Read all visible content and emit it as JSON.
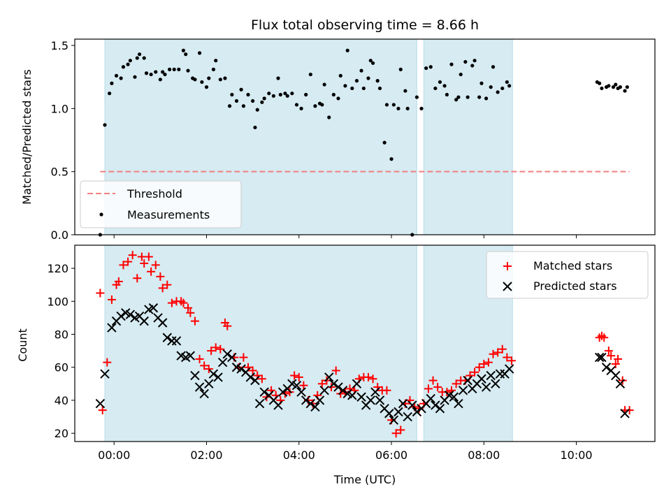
{
  "chart_data": [
    {
      "type": "scatter",
      "panel": "top",
      "title": "Flux total observing time = 8.66 h",
      "ylabel": "Matched/Predicted stars",
      "xlabel": "",
      "ylim": [
        0,
        1.55
      ],
      "xlim_hours": [
        -0.85,
        11.7
      ],
      "yticks": [
        "0.0",
        "0.5",
        "1.0",
        "1.5"
      ],
      "ytick_values": [
        0,
        0.5,
        1.0,
        1.5
      ],
      "shaded_intervals_hours": [
        [
          -0.2,
          6.55
        ],
        [
          6.7,
          8.62
        ]
      ],
      "threshold": {
        "name": "Threshold",
        "value": 0.5,
        "x_from": -0.3,
        "x_to": 11.15,
        "color": "#f08080"
      },
      "legend": {
        "placement": "lower-left",
        "entries": [
          "Threshold",
          "Measurements"
        ]
      },
      "series": [
        {
          "name": "Measurements",
          "color": "#000000",
          "x": [
            -0.3,
            -0.2,
            -0.1,
            -0.05,
            0.05,
            0.15,
            0.2,
            0.3,
            0.35,
            0.45,
            0.5,
            0.55,
            0.65,
            0.7,
            0.8,
            0.9,
            1.0,
            1.05,
            1.1,
            1.2,
            1.3,
            1.4,
            1.5,
            1.55,
            1.6,
            1.7,
            1.75,
            1.85,
            1.9,
            2.0,
            2.05,
            2.15,
            2.2,
            2.3,
            2.4,
            2.5,
            2.55,
            2.65,
            2.75,
            2.8,
            2.9,
            3.0,
            3.05,
            3.1,
            3.2,
            3.25,
            3.35,
            3.45,
            3.55,
            3.6,
            3.7,
            3.75,
            3.85,
            3.95,
            4.05,
            4.15,
            4.25,
            4.35,
            4.45,
            4.5,
            4.55,
            4.65,
            4.75,
            4.85,
            4.9,
            5.0,
            5.05,
            5.15,
            5.25,
            5.35,
            5.4,
            5.5,
            5.55,
            5.6,
            5.7,
            5.75,
            5.85,
            5.9,
            6.0,
            6.05,
            6.15,
            6.2,
            6.3,
            6.35,
            6.45,
            6.55,
            6.65,
            6.75,
            6.85,
            6.95,
            7.05,
            7.15,
            7.2,
            7.3,
            7.4,
            7.45,
            7.5,
            7.6,
            7.65,
            7.75,
            7.8,
            7.9,
            7.95,
            8.05,
            8.15,
            8.2,
            8.3,
            8.4,
            8.5,
            8.55,
            10.45,
            10.5,
            10.55,
            10.65,
            10.7,
            10.8,
            10.85,
            10.9,
            10.95,
            11.05,
            11.1
          ],
          "y": [
            0.0,
            0.87,
            1.12,
            1.2,
            1.26,
            1.24,
            1.33,
            1.35,
            1.38,
            1.25,
            1.4,
            1.43,
            1.4,
            1.28,
            1.27,
            1.29,
            1.23,
            1.29,
            1.27,
            1.31,
            1.31,
            1.31,
            1.46,
            1.43,
            1.3,
            1.24,
            1.23,
            1.44,
            1.21,
            1.17,
            1.24,
            1.31,
            1.38,
            1.23,
            1.24,
            1.02,
            1.11,
            1.06,
            1.15,
            1.02,
            1.11,
            1.06,
            0.85,
            0.99,
            1.05,
            1.08,
            1.12,
            1.1,
            1.24,
            1.11,
            1.12,
            1.1,
            1.12,
            1.03,
            1.0,
            1.11,
            1.27,
            1.02,
            1.04,
            1.03,
            1.19,
            0.93,
            1.11,
            1.08,
            1.26,
            1.18,
            1.46,
            1.16,
            1.22,
            1.3,
            1.16,
            1.24,
            1.38,
            1.36,
            1.22,
            1.16,
            0.73,
            1.03,
            0.6,
            1.03,
            1.0,
            1.31,
            1.14,
            1.0,
            0.0,
            1.09,
            1.0,
            1.32,
            1.33,
            1.16,
            1.21,
            1.18,
            1.11,
            1.35,
            1.07,
            1.09,
            1.27,
            1.37,
            1.09,
            1.34,
            1.38,
            1.09,
            1.2,
            1.08,
            1.17,
            1.33,
            1.13,
            1.16,
            1.21,
            1.18,
            1.21,
            1.2,
            1.16,
            1.17,
            1.18,
            1.17,
            1.19,
            1.16,
            1.17,
            1.14,
            1.17
          ]
        }
      ]
    },
    {
      "type": "scatter",
      "panel": "bottom",
      "xlabel": "Time (UTC)",
      "ylabel": "Count",
      "ylim": [
        15,
        134
      ],
      "xlim_hours": [
        -0.85,
        11.7
      ],
      "xticks": [
        "00:00",
        "02:00",
        "04:00",
        "06:00",
        "08:00",
        "10:00"
      ],
      "xtick_hours": [
        0,
        2,
        4,
        6,
        8,
        10
      ],
      "yticks": [
        "20",
        "40",
        "60",
        "80",
        "100",
        "120"
      ],
      "ytick_values": [
        20,
        40,
        60,
        80,
        100,
        120
      ],
      "shaded_intervals_hours": [
        [
          -0.2,
          6.55
        ],
        [
          6.7,
          8.62
        ]
      ],
      "legend": {
        "placement": "top-right",
        "entries": [
          "Matched stars",
          "Predicted stars"
        ]
      },
      "series": [
        {
          "name": "Matched stars",
          "marker": "plus",
          "color": "#ff0000",
          "x": [
            -0.3,
            -0.25,
            -0.15,
            -0.05,
            0.05,
            0.1,
            0.2,
            0.3,
            0.4,
            0.5,
            0.6,
            0.65,
            0.75,
            0.8,
            0.9,
            1.0,
            1.05,
            1.15,
            1.25,
            1.35,
            1.45,
            1.5,
            1.6,
            1.65,
            1.75,
            1.85,
            1.95,
            2.05,
            2.1,
            2.2,
            2.3,
            2.4,
            2.45,
            2.6,
            2.7,
            2.8,
            2.9,
            3.0,
            3.1,
            3.2,
            3.3,
            3.4,
            3.5,
            3.6,
            3.7,
            3.8,
            3.9,
            4.0,
            4.1,
            4.2,
            4.3,
            4.4,
            4.5,
            4.6,
            4.7,
            4.8,
            4.9,
            5.0,
            5.1,
            5.2,
            5.3,
            5.4,
            5.5,
            5.6,
            5.7,
            5.8,
            5.9,
            6.0,
            6.1,
            6.2,
            6.3,
            6.4,
            6.5,
            6.6,
            6.7,
            6.8,
            6.9,
            7.0,
            7.1,
            7.2,
            7.3,
            7.4,
            7.5,
            7.6,
            7.7,
            7.8,
            7.9,
            8.0,
            8.1,
            8.2,
            8.3,
            8.4,
            8.5,
            8.6,
            10.5,
            10.55,
            10.6,
            10.7,
            10.75,
            10.85,
            10.9,
            11.0,
            11.05,
            11.15
          ],
          "y": [
            105,
            34,
            63,
            101,
            110,
            112,
            122,
            124,
            128,
            114,
            127,
            123,
            127,
            118,
            122,
            115,
            108,
            110,
            99,
            100,
            100,
            99,
            96,
            93,
            88,
            65,
            61,
            59,
            70,
            72,
            71,
            87,
            85,
            66,
            60,
            66,
            60,
            58,
            55,
            53,
            42,
            46,
            43,
            40,
            44,
            45,
            55,
            54,
            49,
            40,
            38,
            43,
            50,
            52,
            48,
            58,
            44,
            45,
            47,
            46,
            53,
            54,
            54,
            53,
            48,
            46,
            46,
            28,
            20,
            22,
            38,
            40,
            36,
            35,
            38,
            47,
            52,
            48,
            45,
            45,
            46,
            50,
            52,
            52,
            55,
            57,
            60,
            62,
            63,
            68,
            69,
            71,
            66,
            64,
            78,
            79,
            78,
            70,
            67,
            62,
            65,
            52,
            34,
            34
          ],
          "note": "y values of matched stars as read from the plot"
        },
        {
          "name": "Predicted stars",
          "marker": "x",
          "color": "#000000",
          "x": [
            -0.3,
            -0.2,
            -0.05,
            0.05,
            0.15,
            0.25,
            0.35,
            0.45,
            0.55,
            0.65,
            0.75,
            0.85,
            0.95,
            1.05,
            1.15,
            1.25,
            1.35,
            1.45,
            1.55,
            1.65,
            1.75,
            1.85,
            1.95,
            2.05,
            2.15,
            2.25,
            2.35,
            2.45,
            2.55,
            2.65,
            2.75,
            2.85,
            2.95,
            3.05,
            3.15,
            3.25,
            3.35,
            3.45,
            3.55,
            3.65,
            3.75,
            3.85,
            3.95,
            4.05,
            4.15,
            4.25,
            4.35,
            4.45,
            4.55,
            4.65,
            4.75,
            4.85,
            4.95,
            5.05,
            5.15,
            5.25,
            5.35,
            5.45,
            5.55,
            5.65,
            5.75,
            5.85,
            5.95,
            6.05,
            6.15,
            6.25,
            6.35,
            6.45,
            6.55,
            6.65,
            6.75,
            6.85,
            6.95,
            7.05,
            7.15,
            7.25,
            7.35,
            7.45,
            7.55,
            7.65,
            7.75,
            7.85,
            7.95,
            8.05,
            8.15,
            8.25,
            8.35,
            8.45,
            8.55,
            10.5,
            10.55,
            10.65,
            10.75,
            10.85,
            10.95,
            11.05
          ],
          "y": [
            38,
            56,
            84,
            88,
            91,
            93,
            92,
            90,
            91,
            88,
            95,
            96,
            90,
            87,
            78,
            76,
            76,
            67,
            66,
            67,
            55,
            48,
            44,
            50,
            56,
            54,
            63,
            68,
            66,
            60,
            59,
            57,
            54,
            52,
            38,
            45,
            43,
            40,
            37,
            45,
            47,
            50,
            49,
            45,
            40,
            38,
            36,
            40,
            46,
            54,
            50,
            48,
            46,
            44,
            43,
            50,
            42,
            37,
            40,
            45,
            40,
            35,
            32,
            28,
            33,
            38,
            30,
            37,
            33,
            35,
            38,
            41,
            37,
            35,
            40,
            43,
            42,
            38,
            46,
            52,
            47,
            50,
            53,
            48,
            55,
            50,
            56,
            56,
            59,
            66,
            66,
            60,
            58,
            55,
            50,
            32
          ],
          "note": "y values of predicted stars as read from the plot"
        }
      ]
    }
  ]
}
